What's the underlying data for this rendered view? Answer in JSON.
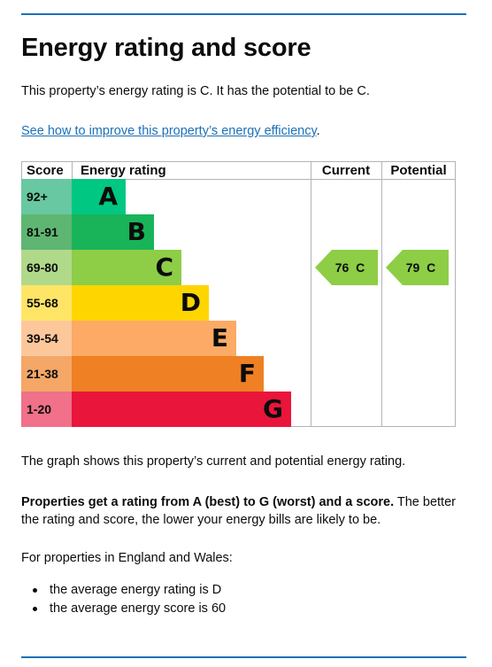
{
  "heading": "Energy rating and score",
  "summary": "This property’s energy rating is C. It has the potential to be C.",
  "improve_link": {
    "text": "See how to improve this property’s energy efficiency",
    "trailing": "."
  },
  "chart": {
    "headers": {
      "score": "Score",
      "rating": "Energy rating",
      "current": "Current",
      "potential": "Potential"
    },
    "bands": [
      {
        "range": "92+",
        "letter": "A",
        "color": "#00c781",
        "score_bg": "#67c8a1",
        "width_frac": 0.227
      },
      {
        "range": "81-91",
        "letter": "B",
        "color": "#19b459",
        "score_bg": "#5fb673",
        "width_frac": 0.343
      },
      {
        "range": "69-80",
        "letter": "C",
        "color": "#8dce46",
        "score_bg": "#b1d98a",
        "width_frac": 0.458
      },
      {
        "range": "55-68",
        "letter": "D",
        "color": "#ffd500",
        "score_bg": "#ffe566",
        "width_frac": 0.574
      },
      {
        "range": "39-54",
        "letter": "E",
        "color": "#fcaa65",
        "score_bg": "#fcc79b",
        "width_frac": 0.689
      },
      {
        "range": "21-38",
        "letter": "F",
        "color": "#ef8023",
        "score_bg": "#f4a766",
        "width_frac": 0.805
      },
      {
        "range": "1-20",
        "letter": "G",
        "color": "#e9153b",
        "score_bg": "#f07189",
        "width_frac": 0.92
      }
    ],
    "current": {
      "label": "76  C",
      "score": 76,
      "rating": "C",
      "color": "#8dce46"
    },
    "potential": {
      "label": "79  C",
      "score": 79,
      "rating": "C",
      "color": "#8dce46"
    }
  },
  "graph_note": "The graph shows this property’s current and potential energy rating.",
  "ratings_bold": "Properties get a rating from A (best) to G (worst) and a score.",
  "ratings_rest": " The better the rating and score, the lower your energy bills are likely to be.",
  "england_wales": "For properties in England and Wales:",
  "averages": [
    "the average energy rating is D",
    "the average energy score is 60"
  ]
}
